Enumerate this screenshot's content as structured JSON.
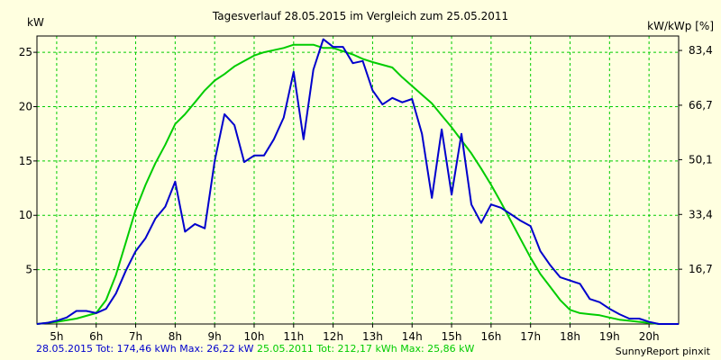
{
  "chart_data": {
    "type": "line",
    "title": "Tagesverlauf 28.05.2015 im Vergleich zum 25.05.2011",
    "ylabel_left": "kW",
    "ylabel_right": "kW/kWp [%]",
    "xlim": [
      4.5,
      20.75
    ],
    "ylim": [
      0,
      26.5
    ],
    "grid": true,
    "x_ticks": [
      {
        "value": 5,
        "label": "5h"
      },
      {
        "value": 6,
        "label": "6h"
      },
      {
        "value": 7,
        "label": "7h"
      },
      {
        "value": 8,
        "label": "8h"
      },
      {
        "value": 9,
        "label": "9h"
      },
      {
        "value": 10,
        "label": "10h"
      },
      {
        "value": 11,
        "label": "11h"
      },
      {
        "value": 12,
        "label": "12h"
      },
      {
        "value": 13,
        "label": "13h"
      },
      {
        "value": 14,
        "label": "14h"
      },
      {
        "value": 15,
        "label": "15h"
      },
      {
        "value": 16,
        "label": "16h"
      },
      {
        "value": 17,
        "label": "17h"
      },
      {
        "value": 18,
        "label": "18h"
      },
      {
        "value": 19,
        "label": "19h"
      },
      {
        "value": 20,
        "label": "20h"
      }
    ],
    "y_ticks_left": [
      {
        "value": 5,
        "label": "5"
      },
      {
        "value": 10,
        "label": "10"
      },
      {
        "value": 15,
        "label": "15"
      },
      {
        "value": 20,
        "label": "20"
      },
      {
        "value": 25,
        "label": "25"
      }
    ],
    "y_ticks_right": [
      {
        "value": 5.04,
        "label": "16,7"
      },
      {
        "value": 10.08,
        "label": "33,4"
      },
      {
        "value": 15.12,
        "label": "50,1"
      },
      {
        "value": 20.13,
        "label": "66,7"
      },
      {
        "value": 25.17,
        "label": "83,4"
      }
    ],
    "series": [
      {
        "name": "28.05.2015",
        "color": "#0000cc",
        "points": [
          [
            4.5,
            0
          ],
          [
            4.75,
            0.1
          ],
          [
            5.0,
            0.3
          ],
          [
            5.25,
            0.6
          ],
          [
            5.5,
            1.2
          ],
          [
            5.75,
            1.2
          ],
          [
            6.0,
            1.0
          ],
          [
            6.25,
            1.4
          ],
          [
            6.5,
            2.8
          ],
          [
            6.75,
            4.9
          ],
          [
            7.0,
            6.7
          ],
          [
            7.25,
            7.9
          ],
          [
            7.5,
            9.7
          ],
          [
            7.75,
            10.8
          ],
          [
            8.0,
            13.1
          ],
          [
            8.25,
            8.5
          ],
          [
            8.5,
            9.2
          ],
          [
            8.75,
            8.8
          ],
          [
            9.0,
            15.0
          ],
          [
            9.25,
            19.3
          ],
          [
            9.5,
            18.3
          ],
          [
            9.75,
            14.9
          ],
          [
            10.0,
            15.5
          ],
          [
            10.25,
            15.5
          ],
          [
            10.5,
            17.0
          ],
          [
            10.75,
            19.0
          ],
          [
            11.0,
            23.2
          ],
          [
            11.25,
            17.0
          ],
          [
            11.5,
            23.4
          ],
          [
            11.75,
            26.2
          ],
          [
            12.0,
            25.5
          ],
          [
            12.25,
            25.5
          ],
          [
            12.5,
            24.0
          ],
          [
            12.75,
            24.2
          ],
          [
            13.0,
            21.5
          ],
          [
            13.25,
            20.2
          ],
          [
            13.5,
            20.8
          ],
          [
            13.75,
            20.4
          ],
          [
            14.0,
            20.7
          ],
          [
            14.25,
            17.5
          ],
          [
            14.5,
            11.6
          ],
          [
            14.75,
            17.9
          ],
          [
            15.0,
            11.9
          ],
          [
            15.25,
            17.5
          ],
          [
            15.5,
            11.0
          ],
          [
            15.75,
            9.3
          ],
          [
            16.0,
            11.0
          ],
          [
            16.25,
            10.7
          ],
          [
            16.5,
            10.1
          ],
          [
            16.75,
            9.5
          ],
          [
            17.0,
            9.0
          ],
          [
            17.25,
            6.7
          ],
          [
            17.5,
            5.4
          ],
          [
            17.75,
            4.3
          ],
          [
            18.0,
            4.0
          ],
          [
            18.25,
            3.7
          ],
          [
            18.5,
            2.3
          ],
          [
            18.75,
            2.0
          ],
          [
            19.0,
            1.4
          ],
          [
            19.25,
            0.9
          ],
          [
            19.5,
            0.5
          ],
          [
            19.75,
            0.5
          ],
          [
            20.0,
            0.2
          ],
          [
            20.25,
            0
          ],
          [
            20.75,
            0
          ]
        ]
      },
      {
        "name": "25.05.2011",
        "color": "#00cc00",
        "points": [
          [
            4.5,
            0
          ],
          [
            5.0,
            0.2
          ],
          [
            5.5,
            0.5
          ],
          [
            6.0,
            1.0
          ],
          [
            6.25,
            2.2
          ],
          [
            6.5,
            4.5
          ],
          [
            6.75,
            7.5
          ],
          [
            7.0,
            10.5
          ],
          [
            7.25,
            12.8
          ],
          [
            7.5,
            14.8
          ],
          [
            7.75,
            16.5
          ],
          [
            8.0,
            18.4
          ],
          [
            8.25,
            19.3
          ],
          [
            8.5,
            20.4
          ],
          [
            8.75,
            21.5
          ],
          [
            9.0,
            22.4
          ],
          [
            9.25,
            23.0
          ],
          [
            9.5,
            23.7
          ],
          [
            9.75,
            24.2
          ],
          [
            10.0,
            24.7
          ],
          [
            10.25,
            25.0
          ],
          [
            10.5,
            25.2
          ],
          [
            10.75,
            25.4
          ],
          [
            11.0,
            25.7
          ],
          [
            11.5,
            25.7
          ],
          [
            11.75,
            25.4
          ],
          [
            12.0,
            25.4
          ],
          [
            12.25,
            25.1
          ],
          [
            12.5,
            24.8
          ],
          [
            12.75,
            24.4
          ],
          [
            13.0,
            24.1
          ],
          [
            13.5,
            23.6
          ],
          [
            13.75,
            22.7
          ],
          [
            14.0,
            21.9
          ],
          [
            14.25,
            21.1
          ],
          [
            14.5,
            20.3
          ],
          [
            14.75,
            19.2
          ],
          [
            15.0,
            18.1
          ],
          [
            15.25,
            16.9
          ],
          [
            15.5,
            15.7
          ],
          [
            15.75,
            14.3
          ],
          [
            16.0,
            12.8
          ],
          [
            16.25,
            11.2
          ],
          [
            16.5,
            9.5
          ],
          [
            16.75,
            7.8
          ],
          [
            17.0,
            6.1
          ],
          [
            17.25,
            4.6
          ],
          [
            17.5,
            3.4
          ],
          [
            17.75,
            2.2
          ],
          [
            18.0,
            1.3
          ],
          [
            18.25,
            1.0
          ],
          [
            18.5,
            0.9
          ],
          [
            18.75,
            0.8
          ],
          [
            19.0,
            0.6
          ],
          [
            19.25,
            0.4
          ],
          [
            19.5,
            0.3
          ],
          [
            19.75,
            0.2
          ],
          [
            20.0,
            0.1
          ],
          [
            20.25,
            0
          ],
          [
            20.75,
            0
          ]
        ]
      }
    ]
  },
  "footer": {
    "series1_text": "28.05.2015 Tot: 174,46 kWh Max: 26,22 kW",
    "series2_text": "25.05.2011 Tot: 212,17 kWh Max: 25,86 kW"
  },
  "credit": "SunnyReport pinxit",
  "colors": {
    "background": "#ffffe0",
    "grid": "#00cc00",
    "series1": "#0000cc",
    "series2": "#00cc00"
  }
}
